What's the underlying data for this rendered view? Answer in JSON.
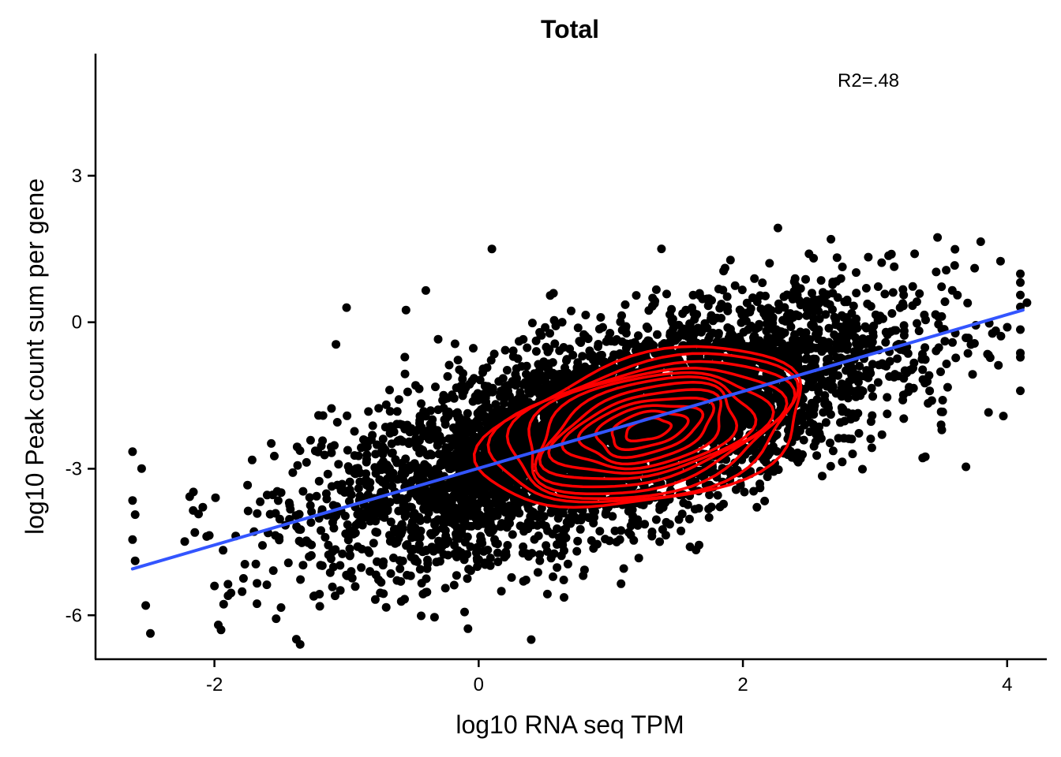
{
  "chart_data": {
    "type": "scatter",
    "title": "Total",
    "xlabel": "log10 RNA seq TPM",
    "ylabel": "log10 Peak count sum per gene",
    "xlim": [
      -2.9,
      4.3
    ],
    "ylim": [
      -6.9,
      5.5
    ],
    "x_ticks": [
      -2,
      0,
      2,
      4
    ],
    "x_tick_labels": [
      "-2",
      "0",
      "2",
      "4"
    ],
    "y_ticks": [
      -6,
      -3,
      0,
      3
    ],
    "y_tick_labels": [
      "-6",
      "-3",
      "0",
      "3"
    ],
    "grid": false,
    "legend": "none",
    "annotation": "R2=.48",
    "annotation_position": [
      2.95,
      4.95
    ],
    "point_color": "#000000",
    "fit_line": {
      "color": "#3355ff",
      "x": [
        -2.62,
        4.12
      ],
      "y": [
        -5.05,
        0.25
      ]
    },
    "density_contours": {
      "color": "#ff0000",
      "center": [
        1.28,
        -2.2
      ],
      "levels": 12
    },
    "points_outliers": [
      {
        "x": 0.1,
        "y": 1.5
      },
      {
        "x": -1.0,
        "y": 0.3
      },
      {
        "x": -0.4,
        "y": 0.65
      },
      {
        "x": -2.62,
        "y": -2.65
      },
      {
        "x": -2.62,
        "y": -3.65
      },
      {
        "x": -2.62,
        "y": -4.45
      },
      {
        "x": -2.52,
        "y": -5.8
      },
      {
        "x": -1.95,
        "y": -6.3
      },
      {
        "x": 2.5,
        "y": 1.4
      },
      {
        "x": 3.3,
        "y": 1.4
      },
      {
        "x": 3.8,
        "y": 1.65
      },
      {
        "x": 4.15,
        "y": 0.4
      },
      {
        "x": 3.95,
        "y": 1.25
      },
      {
        "x": 2.6,
        "y": -3.15
      },
      {
        "x": 3.5,
        "y": -2.1
      },
      {
        "x": 1.6,
        "y": -4.6
      },
      {
        "x": -0.55,
        "y": 0.25
      }
    ]
  }
}
